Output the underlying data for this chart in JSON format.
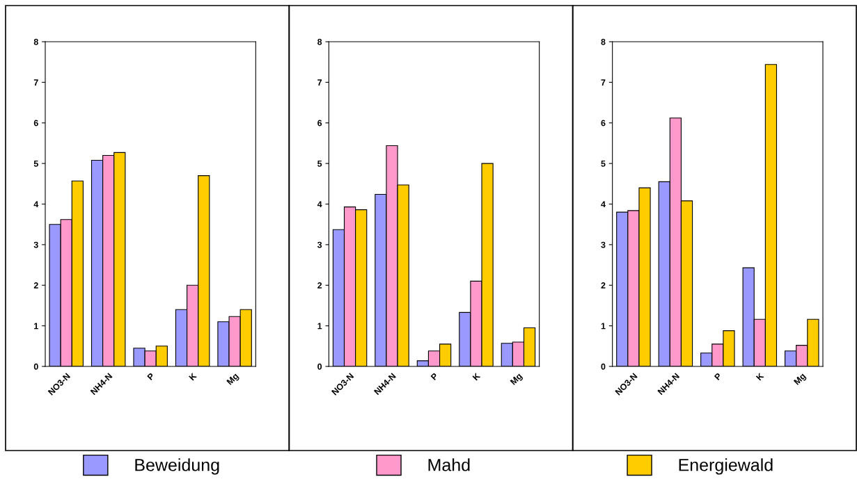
{
  "chart_data": [
    {
      "type": "bar",
      "categories": [
        "NO3-N",
        "NH4-N",
        "P",
        "K",
        "Mg"
      ],
      "ylim": [
        0,
        8
      ],
      "yticks": [
        0,
        1,
        2,
        3,
        4,
        5,
        6,
        7,
        8
      ],
      "legend": "bottom",
      "series": [
        {
          "name": "Beweidung",
          "color": "#9999ff",
          "values": [
            3.5,
            5.08,
            0.45,
            1.4,
            1.1
          ]
        },
        {
          "name": "Mahd",
          "color": "#ff99cc",
          "values": [
            3.62,
            5.2,
            0.38,
            2.0,
            1.23
          ]
        },
        {
          "name": "Energiewald",
          "color": "#ffcc00",
          "values": [
            4.57,
            5.27,
            0.5,
            4.7,
            1.4
          ]
        }
      ]
    },
    {
      "type": "bar",
      "categories": [
        "NO3-N",
        "NH4-N",
        "P",
        "K",
        "Mg"
      ],
      "ylim": [
        0,
        8
      ],
      "yticks": [
        0,
        1,
        2,
        3,
        4,
        5,
        6,
        7,
        8
      ],
      "series": [
        {
          "name": "Beweidung",
          "color": "#9999ff",
          "values": [
            3.37,
            4.24,
            0.14,
            1.33,
            0.57
          ]
        },
        {
          "name": "Mahd",
          "color": "#ff99cc",
          "values": [
            3.93,
            5.44,
            0.38,
            2.1,
            0.6
          ]
        },
        {
          "name": "Energiewald",
          "color": "#ffcc00",
          "values": [
            3.86,
            4.47,
            0.55,
            5.0,
            0.95
          ]
        }
      ]
    },
    {
      "type": "bar",
      "categories": [
        "NO3-N",
        "NH4-N",
        "P",
        "K",
        "Mg"
      ],
      "ylim": [
        0,
        8
      ],
      "yticks": [
        0,
        1,
        2,
        3,
        4,
        5,
        6,
        7,
        8
      ],
      "series": [
        {
          "name": "Beweidung",
          "color": "#9999ff",
          "values": [
            3.8,
            4.55,
            0.33,
            2.43,
            0.38
          ]
        },
        {
          "name": "Mahd",
          "color": "#ff99cc",
          "values": [
            3.84,
            6.12,
            0.55,
            1.16,
            0.52
          ]
        },
        {
          "name": "Energiewald",
          "color": "#ffcc00",
          "values": [
            4.4,
            4.08,
            0.88,
            7.44,
            1.16
          ]
        }
      ]
    }
  ]
}
